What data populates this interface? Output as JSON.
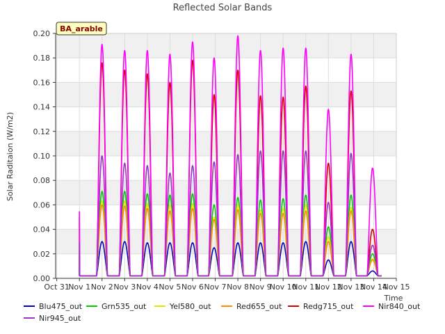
{
  "chart_data": {
    "type": "line",
    "title": "Reflected Solar Bands",
    "xlabel": "Time",
    "ylabel": "Solar Raditaion (W/m2)",
    "badge": "BA_arable",
    "x_ticks": [
      "Oct 31",
      "Nov 1",
      "Nov 2",
      "Nov 3",
      "Nov 4",
      "Nov 5",
      "Nov 6",
      "Nov 7",
      "Nov 8",
      "Nov 9",
      "Nov 10",
      "Nov 11",
      "Nov 12",
      "Nov 13",
      "Nov 14",
      "Nov 15"
    ],
    "xlim": [
      -0.05,
      15.0
    ],
    "ylim": [
      0.0,
      0.2
    ],
    "y_ticks": [
      "0.00",
      "0.02",
      "0.04",
      "0.06",
      "0.08",
      "0.10",
      "0.12",
      "0.14",
      "0.16",
      "0.18",
      "0.20"
    ],
    "baseline": 0.002,
    "grid": true,
    "legend_position": "bottom",
    "day_centers": [
      2.0,
      3.0,
      4.0,
      5.0,
      6.0,
      6.95,
      8.0,
      9.0,
      10.0,
      11.0,
      12.0,
      13.0,
      13.95
    ],
    "x_start_spike": 1.0,
    "series": [
      {
        "name": "Blu475_out",
        "color": "#0000cc",
        "peaks": [
          0.03,
          0.03,
          0.029,
          0.029,
          0.029,
          0.025,
          0.029,
          0.029,
          0.029,
          0.03,
          0.015,
          0.03,
          0.006
        ]
      },
      {
        "name": "Grn535_out",
        "color": "#00cc00",
        "peaks": [
          0.071,
          0.071,
          0.069,
          0.068,
          0.069,
          0.06,
          0.066,
          0.064,
          0.065,
          0.068,
          0.042,
          0.068,
          0.02
        ]
      },
      {
        "name": "Yel580_out",
        "color": "#e6e600",
        "peaks": [
          0.063,
          0.063,
          0.061,
          0.06,
          0.061,
          0.05,
          0.06,
          0.056,
          0.057,
          0.06,
          0.034,
          0.058,
          0.016
        ]
      },
      {
        "name": "Red655_out",
        "color": "#ff8c00",
        "peaks": [
          0.06,
          0.059,
          0.057,
          0.055,
          0.057,
          0.048,
          0.056,
          0.053,
          0.053,
          0.055,
          0.03,
          0.055,
          0.015
        ]
      },
      {
        "name": "Redg715_out",
        "color": "#dd0000",
        "peaks": [
          0.176,
          0.17,
          0.167,
          0.16,
          0.178,
          0.15,
          0.17,
          0.149,
          0.148,
          0.157,
          0.094,
          0.153,
          0.04
        ]
      },
      {
        "name": "Nir840_out",
        "color": "#ff00ff",
        "peaks": [
          0.191,
          0.186,
          0.186,
          0.183,
          0.193,
          0.18,
          0.198,
          0.186,
          0.188,
          0.188,
          0.138,
          0.183,
          0.09
        ]
      },
      {
        "name": "Nir945_out",
        "color": "#9933cc",
        "peaks": [
          0.1,
          0.094,
          0.092,
          0.086,
          0.092,
          0.095,
          0.101,
          0.104,
          0.104,
          0.104,
          0.062,
          0.102,
          0.027
        ]
      }
    ]
  }
}
